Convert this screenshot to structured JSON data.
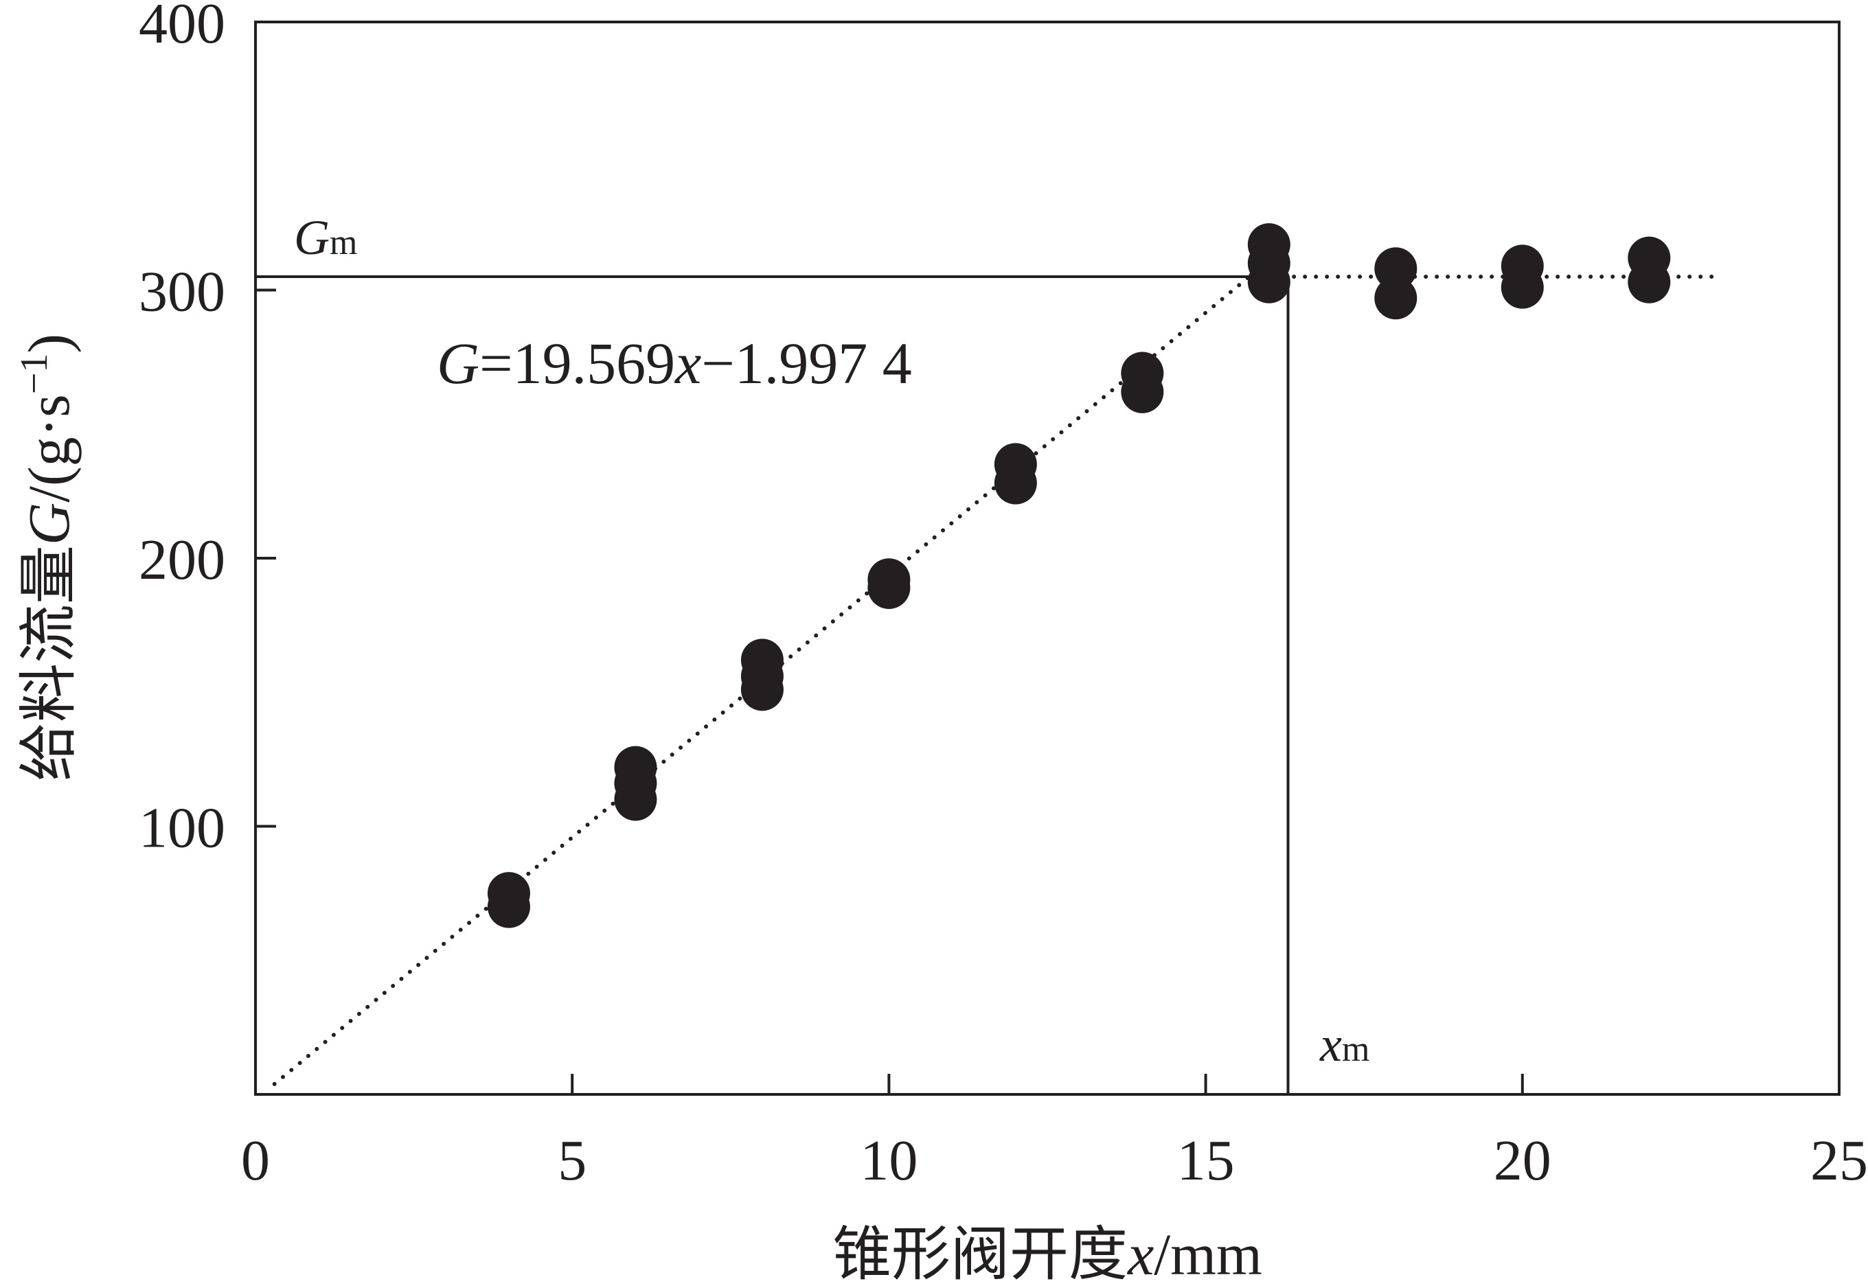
{
  "chart_data": {
    "type": "scatter",
    "xlabel_cn": "锥形阀开度",
    "xlabel_var": "x",
    "xlabel_unit": "/mm",
    "ylabel_cn": "给料流量",
    "ylabel_var": "G",
    "ylabel_unit": "/(g·s",
    "ylabel_exp": "−1",
    "ylabel_close": ")",
    "xlim": [
      0,
      25
    ],
    "ylim": [
      0,
      400
    ],
    "xticks": [
      0,
      5,
      10,
      15,
      20,
      25
    ],
    "yticks": [
      100,
      200,
      300,
      400
    ],
    "x_tick_labels": [
      "0",
      "5",
      "10",
      "15",
      "20",
      "25"
    ],
    "y_tick_labels": [
      "100",
      "200",
      "300",
      "400"
    ],
    "grid": false,
    "equation": {
      "var": "G",
      "middle": "=19.569",
      "var2": "x",
      "rest": "−1.997 4"
    },
    "Gm_label": {
      "main": "G",
      "sub": "m"
    },
    "xm_label": {
      "main": "x",
      "sub": "m"
    },
    "Gm_value": 305,
    "xm_value": 16.3,
    "fit_line": {
      "slope": 19.569,
      "intercept": -1.9974,
      "x_start": 0.3,
      "x_end": 15.7
    },
    "plateau_line": {
      "y": 305,
      "x_start": 15.7,
      "x_end": 23
    },
    "points": [
      {
        "x": 4,
        "y": 75
      },
      {
        "x": 4,
        "y": 70
      },
      {
        "x": 6,
        "y": 122
      },
      {
        "x": 6,
        "y": 116
      },
      {
        "x": 6,
        "y": 110
      },
      {
        "x": 8,
        "y": 162
      },
      {
        "x": 8,
        "y": 156
      },
      {
        "x": 8,
        "y": 151
      },
      {
        "x": 10,
        "y": 192
      },
      {
        "x": 10,
        "y": 189
      },
      {
        "x": 12,
        "y": 235
      },
      {
        "x": 12,
        "y": 228
      },
      {
        "x": 14,
        "y": 269
      },
      {
        "x": 14,
        "y": 262
      },
      {
        "x": 16,
        "y": 317
      },
      {
        "x": 16,
        "y": 310
      },
      {
        "x": 16,
        "y": 303
      },
      {
        "x": 18,
        "y": 308
      },
      {
        "x": 18,
        "y": 297
      },
      {
        "x": 20,
        "y": 309
      },
      {
        "x": 20,
        "y": 301
      },
      {
        "x": 22,
        "y": 312
      },
      {
        "x": 22,
        "y": 303
      }
    ]
  }
}
